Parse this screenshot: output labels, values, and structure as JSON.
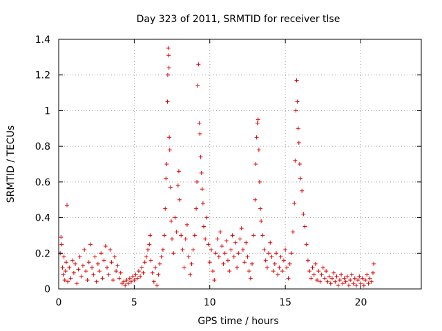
{
  "chart_data": {
    "type": "scatter",
    "title": "Day 323 of 2011, SRMTID for receiver tlse",
    "xlabel": "GPS time / hours",
    "ylabel": "SRMTID / TECUs",
    "xlim": [
      0,
      24
    ],
    "ylim": [
      0,
      1.4
    ],
    "xticks": [
      0,
      5,
      10,
      15,
      20
    ],
    "yticks": [
      0,
      0.2,
      0.4,
      0.6,
      0.8,
      1,
      1.2,
      1.4
    ],
    "xtick_labels": [
      "0",
      "5",
      "10",
      "15",
      "20"
    ],
    "ytick_labels": [
      "0",
      "0.2",
      "0.4",
      "0.6",
      "0.8",
      "1",
      "1.2",
      "1.4"
    ],
    "grid": true,
    "marker": "+",
    "color": "#e00000",
    "series": [
      {
        "name": "SRMTID",
        "points": [
          [
            0.1,
            0.2
          ],
          [
            0.15,
            0.29
          ],
          [
            0.2,
            0.25
          ],
          [
            0.25,
            0.12
          ],
          [
            0.3,
            0.08
          ],
          [
            0.35,
            0.18
          ],
          [
            0.4,
            0.05
          ],
          [
            0.45,
            0.1
          ],
          [
            0.5,
            0.15
          ],
          [
            0.55,
            0.47
          ],
          [
            0.6,
            0.04
          ],
          [
            0.7,
            0.12
          ],
          [
            0.8,
            0.06
          ],
          [
            0.9,
            0.16
          ],
          [
            1.0,
            0.09
          ],
          [
            1.1,
            0.14
          ],
          [
            1.2,
            0.03
          ],
          [
            1.3,
            0.11
          ],
          [
            1.4,
            0.18
          ],
          [
            1.5,
            0.07
          ],
          [
            1.6,
            0.13
          ],
          [
            1.7,
            0.22
          ],
          [
            1.8,
            0.1
          ],
          [
            1.9,
            0.05
          ],
          [
            2.0,
            0.15
          ],
          [
            2.1,
            0.25
          ],
          [
            2.2,
            0.12
          ],
          [
            2.3,
            0.08
          ],
          [
            2.4,
            0.18
          ],
          [
            2.5,
            0.04
          ],
          [
            2.6,
            0.14
          ],
          [
            2.7,
            0.1
          ],
          [
            2.8,
            0.2
          ],
          [
            2.9,
            0.06
          ],
          [
            3.0,
            0.16
          ],
          [
            3.1,
            0.24
          ],
          [
            3.2,
            0.12
          ],
          [
            3.3,
            0.08
          ],
          [
            3.4,
            0.22
          ],
          [
            3.5,
            0.15
          ],
          [
            3.6,
            0.05
          ],
          [
            3.7,
            0.18
          ],
          [
            3.8,
            0.1
          ],
          [
            3.9,
            0.13
          ],
          [
            4.0,
            0.06
          ],
          [
            4.1,
            0.09
          ],
          [
            4.2,
            0.03
          ],
          [
            4.3,
            0.04
          ],
          [
            4.4,
            0.02
          ],
          [
            4.5,
            0.05
          ],
          [
            4.6,
            0.03
          ],
          [
            4.7,
            0.06
          ],
          [
            4.8,
            0.04
          ],
          [
            4.9,
            0.07
          ],
          [
            5.0,
            0.05
          ],
          [
            5.1,
            0.08
          ],
          [
            5.2,
            0.06
          ],
          [
            5.3,
            0.1
          ],
          [
            5.4,
            0.07
          ],
          [
            5.5,
            0.12
          ],
          [
            5.6,
            0.09
          ],
          [
            5.7,
            0.15
          ],
          [
            5.8,
            0.18
          ],
          [
            5.9,
            0.22
          ],
          [
            6.0,
            0.25
          ],
          [
            6.05,
            0.3
          ],
          [
            6.1,
            0.16
          ],
          [
            6.2,
            0.09
          ],
          [
            6.3,
            0.04
          ],
          [
            6.4,
            0.12
          ],
          [
            6.5,
            0.02
          ],
          [
            6.6,
            0.08
          ],
          [
            6.7,
            0.14
          ],
          [
            6.8,
            0.18
          ],
          [
            6.9,
            0.22
          ],
          [
            7.0,
            0.3
          ],
          [
            7.05,
            0.45
          ],
          [
            7.1,
            0.62
          ],
          [
            7.15,
            0.7
          ],
          [
            7.2,
            1.05
          ],
          [
            7.22,
            1.2
          ],
          [
            7.25,
            1.35
          ],
          [
            7.28,
            1.31
          ],
          [
            7.3,
            1.24
          ],
          [
            7.32,
            0.85
          ],
          [
            7.35,
            0.78
          ],
          [
            7.4,
            0.57
          ],
          [
            7.45,
            0.38
          ],
          [
            7.5,
            0.28
          ],
          [
            7.6,
            0.2
          ],
          [
            7.7,
            0.4
          ],
          [
            7.8,
            0.32
          ],
          [
            7.9,
            0.58
          ],
          [
            7.95,
            0.66
          ],
          [
            8.0,
            0.5
          ],
          [
            8.1,
            0.3
          ],
          [
            8.2,
            0.22
          ],
          [
            8.3,
            0.12
          ],
          [
            8.4,
            0.28
          ],
          [
            8.5,
            0.36
          ],
          [
            8.6,
            0.18
          ],
          [
            8.7,
            0.08
          ],
          [
            8.8,
            0.14
          ],
          [
            8.9,
            0.22
          ],
          [
            9.0,
            0.3
          ],
          [
            9.1,
            0.45
          ],
          [
            9.15,
            0.6
          ],
          [
            9.2,
            1.14
          ],
          [
            9.25,
            1.26
          ],
          [
            9.3,
            0.93
          ],
          [
            9.35,
            0.87
          ],
          [
            9.4,
            0.74
          ],
          [
            9.45,
            0.65
          ],
          [
            9.5,
            0.56
          ],
          [
            9.55,
            0.48
          ],
          [
            9.6,
            0.35
          ],
          [
            9.7,
            0.28
          ],
          [
            9.8,
            0.4
          ],
          [
            9.9,
            0.25
          ],
          [
            10.0,
            0.15
          ],
          [
            10.1,
            0.22
          ],
          [
            10.2,
            0.1
          ],
          [
            10.3,
            0.05
          ],
          [
            10.4,
            0.2
          ],
          [
            10.5,
            0.28
          ],
          [
            10.6,
            0.18
          ],
          [
            10.7,
            0.32
          ],
          [
            10.8,
            0.24
          ],
          [
            10.9,
            0.14
          ],
          [
            11.0,
            0.2
          ],
          [
            11.1,
            0.27
          ],
          [
            11.2,
            0.16
          ],
          [
            11.3,
            0.1
          ],
          [
            11.4,
            0.22
          ],
          [
            11.5,
            0.3
          ],
          [
            11.6,
            0.18
          ],
          [
            11.7,
            0.26
          ],
          [
            11.8,
            0.12
          ],
          [
            11.9,
            0.2
          ],
          [
            12.0,
            0.28
          ],
          [
            12.1,
            0.34
          ],
          [
            12.2,
            0.22
          ],
          [
            12.3,
            0.15
          ],
          [
            12.4,
            0.26
          ],
          [
            12.5,
            0.18
          ],
          [
            12.6,
            0.1
          ],
          [
            12.7,
            0.06
          ],
          [
            12.8,
            0.14
          ],
          [
            12.9,
            0.3
          ],
          [
            13.0,
            0.5
          ],
          [
            13.05,
            0.7
          ],
          [
            13.1,
            0.85
          ],
          [
            13.15,
            0.93
          ],
          [
            13.2,
            0.95
          ],
          [
            13.25,
            0.78
          ],
          [
            13.3,
            0.6
          ],
          [
            13.35,
            0.45
          ],
          [
            13.4,
            0.38
          ],
          [
            13.5,
            0.3
          ],
          [
            13.6,
            0.22
          ],
          [
            13.7,
            0.16
          ],
          [
            13.8,
            0.12
          ],
          [
            13.9,
            0.2
          ],
          [
            14.0,
            0.26
          ],
          [
            14.1,
            0.18
          ],
          [
            14.2,
            0.1
          ],
          [
            14.3,
            0.14
          ],
          [
            14.4,
            0.2
          ],
          [
            14.5,
            0.08
          ],
          [
            14.6,
            0.12
          ],
          [
            14.7,
            0.18
          ],
          [
            14.8,
            0.1
          ],
          [
            14.9,
            0.16
          ],
          [
            15.0,
            0.22
          ],
          [
            15.1,
            0.12
          ],
          [
            15.2,
            0.06
          ],
          [
            15.3,
            0.14
          ],
          [
            15.4,
            0.2
          ],
          [
            15.5,
            0.32
          ],
          [
            15.6,
            0.48
          ],
          [
            15.65,
            0.72
          ],
          [
            15.7,
            1.0
          ],
          [
            15.75,
            1.17
          ],
          [
            15.8,
            1.05
          ],
          [
            15.85,
            0.9
          ],
          [
            15.9,
            0.82
          ],
          [
            15.95,
            0.7
          ],
          [
            16.0,
            0.62
          ],
          [
            16.1,
            0.55
          ],
          [
            16.2,
            0.42
          ],
          [
            16.3,
            0.35
          ],
          [
            16.4,
            0.25
          ],
          [
            16.5,
            0.16
          ],
          [
            16.6,
            0.1
          ],
          [
            16.7,
            0.06
          ],
          [
            16.8,
            0.12
          ],
          [
            16.9,
            0.08
          ],
          [
            17.0,
            0.14
          ],
          [
            17.1,
            0.05
          ],
          [
            17.2,
            0.1
          ],
          [
            17.3,
            0.04
          ],
          [
            17.4,
            0.08
          ],
          [
            17.5,
            0.12
          ],
          [
            17.6,
            0.06
          ],
          [
            17.7,
            0.1
          ],
          [
            17.8,
            0.04
          ],
          [
            17.9,
            0.07
          ],
          [
            18.0,
            0.03
          ],
          [
            18.1,
            0.06
          ],
          [
            18.2,
            0.09
          ],
          [
            18.3,
            0.04
          ],
          [
            18.4,
            0.07
          ],
          [
            18.5,
            0.02
          ],
          [
            18.6,
            0.05
          ],
          [
            18.7,
            0.08
          ],
          [
            18.8,
            0.03
          ],
          [
            18.9,
            0.06
          ],
          [
            19.0,
            0.04
          ],
          [
            19.1,
            0.07
          ],
          [
            19.2,
            0.02
          ],
          [
            19.3,
            0.05
          ],
          [
            19.4,
            0.08
          ],
          [
            19.5,
            0.03
          ],
          [
            19.6,
            0.06
          ],
          [
            19.7,
            0.02
          ],
          [
            19.8,
            0.05
          ],
          [
            19.9,
            0.07
          ],
          [
            20.0,
            0.03
          ],
          [
            20.1,
            0.06
          ],
          [
            20.2,
            0.02
          ],
          [
            20.3,
            0.05
          ],
          [
            20.4,
            0.08
          ],
          [
            20.5,
            0.03
          ],
          [
            20.6,
            0.06
          ],
          [
            20.7,
            0.04
          ],
          [
            20.8,
            0.09
          ],
          [
            20.85,
            0.14
          ]
        ]
      }
    ]
  }
}
